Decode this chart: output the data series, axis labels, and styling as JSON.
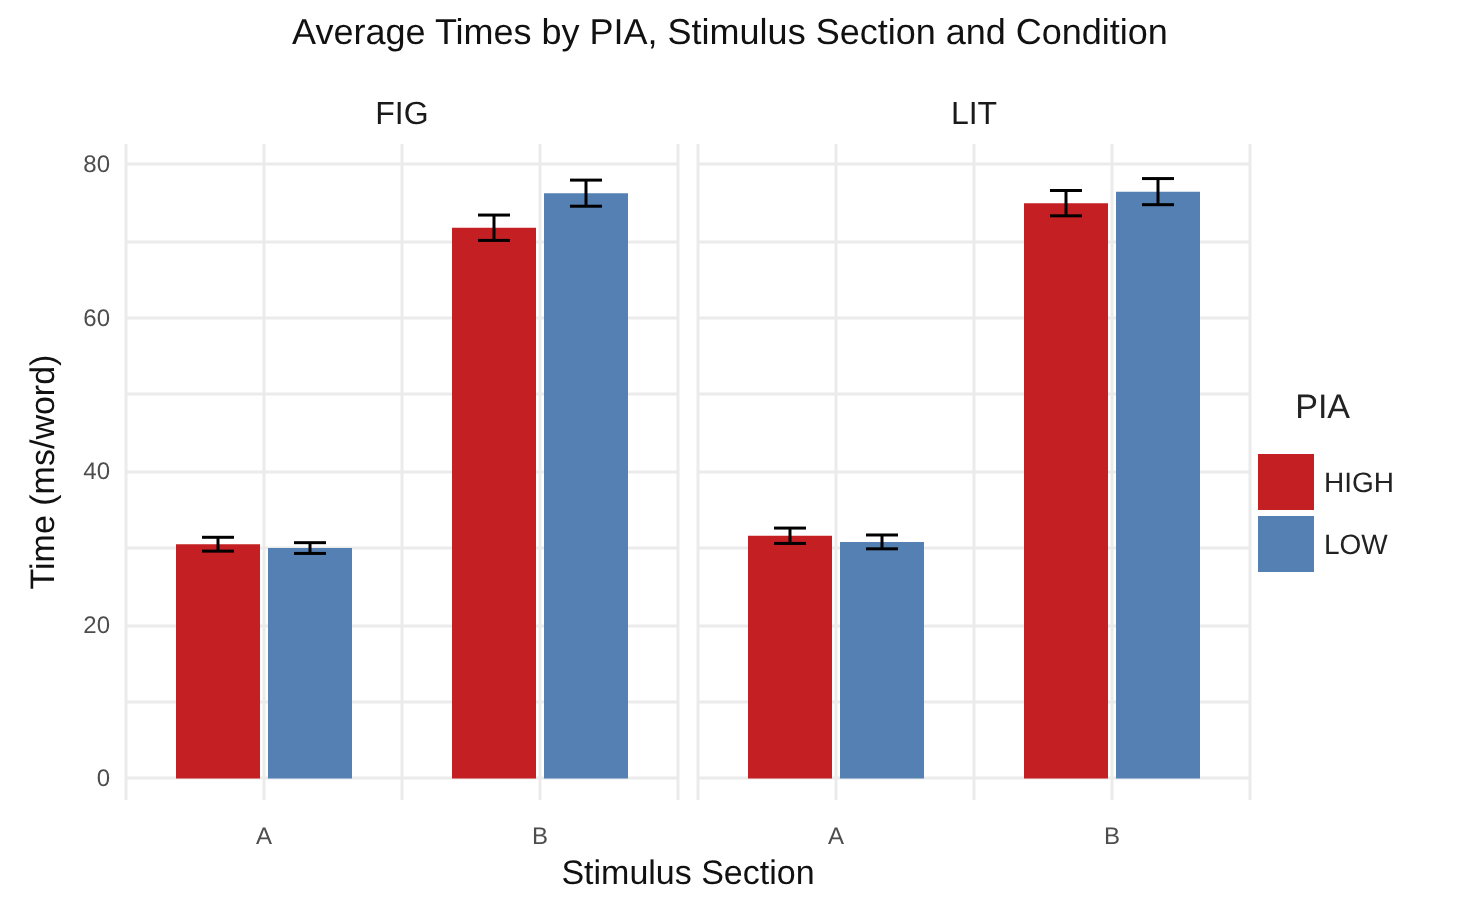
{
  "chart_data": [
    {
      "type": "bar",
      "title": "Average Times by PIA, Stimulus Section and Condition",
      "subtitle": "FIG",
      "xlabel": "Stimulus Section",
      "ylabel": "Time (ms/word)",
      "categories": [
        "A",
        "B"
      ],
      "series": [
        {
          "color": "#c41f22",
          "values": [
            30.5,
            71.7
          ],
          "errors": [
            0.9,
            1.65
          ]
        },
        {
          "color": "#5580b4",
          "values": [
            30.0,
            76.2
          ],
          "errors": [
            0.7,
            1.7
          ]
        }
      ],
      "ylim": [
        -2.8,
        82.6
      ],
      "yticks": [
        0,
        {
          "value": 10,
          "label": null
        },
        20,
        {
          "value": 30,
          "label": null
        },
        40,
        {
          "value": 50,
          "label": null
        },
        60,
        {
          "value": 70,
          "label": null
        },
        80
      ],
      "grid": true,
      "legend": false
    },
    {
      "type": "bar",
      "subtitle": "LIT",
      "categories": [
        "A",
        "B"
      ],
      "series": [
        {
          "name": "HIGH",
          "color": "#c41f22",
          "values": [
            31.6,
            74.9
          ],
          "errors": [
            1.0,
            1.65
          ]
        },
        {
          "name": "LOW",
          "color": "#5580b4",
          "values": [
            30.8,
            76.4
          ],
          "errors": [
            0.9,
            1.7
          ]
        }
      ],
      "ylim": [
        -2.8,
        82.6
      ],
      "yticks": [
        0,
        {
          "value": 10,
          "label": null
        },
        20,
        {
          "value": 30,
          "label": null
        },
        40,
        {
          "value": 50,
          "label": null
        },
        60,
        {
          "value": 70,
          "label": null
        },
        80
      ],
      "grid": true,
      "legend": "right",
      "legend_title": "PIA",
      "tick_labels": "x"
    }
  ]
}
